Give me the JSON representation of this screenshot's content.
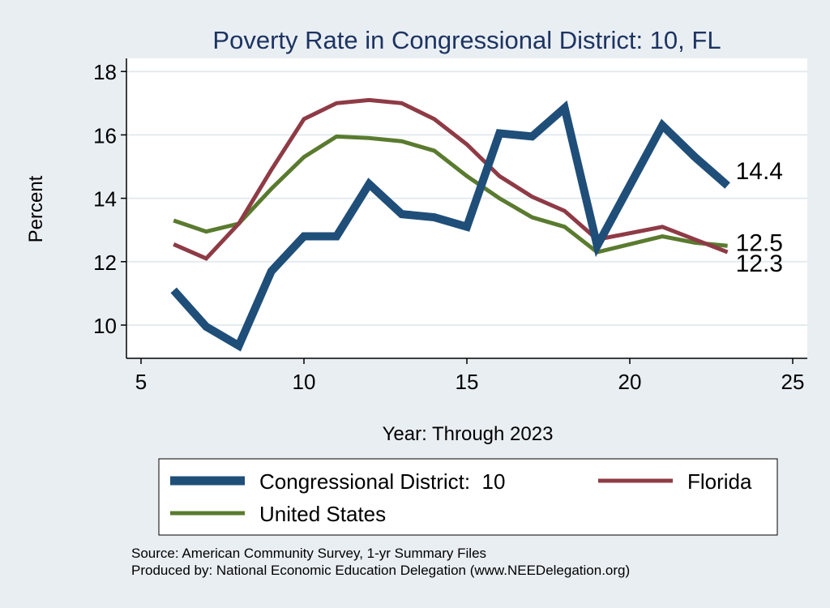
{
  "chart_data": {
    "type": "line",
    "title": "Poverty Rate in Congressional District:  10, FL",
    "xlabel": "Year: Through 2023",
    "ylabel": "Percent",
    "xlim": [
      5,
      25
    ],
    "ylim": [
      9,
      18.3
    ],
    "x_ticks": [
      5,
      10,
      15,
      20,
      25
    ],
    "y_ticks": [
      10,
      12,
      14,
      16,
      18
    ],
    "grid": true,
    "legend_position": "bottom",
    "series": [
      {
        "name": "Congressional District:  10",
        "color": "#1f4e79",
        "x": [
          6,
          7,
          8,
          9,
          10,
          11,
          12,
          13,
          14,
          15,
          16,
          17,
          18,
          19,
          21,
          22,
          23
        ],
        "values": [
          11.1,
          9.95,
          9.35,
          11.7,
          12.8,
          12.8,
          14.45,
          13.5,
          13.4,
          13.1,
          16.05,
          15.95,
          16.85,
          12.5,
          16.3,
          15.3,
          14.4
        ],
        "end_label": "14.4"
      },
      {
        "name": "Florida",
        "color": "#8e3b46",
        "x": [
          6,
          7,
          8,
          9,
          10,
          11,
          12,
          13,
          14,
          15,
          16,
          17,
          18,
          19,
          21,
          22,
          23
        ],
        "values": [
          12.55,
          12.1,
          13.2,
          14.9,
          16.5,
          17.0,
          17.1,
          17.0,
          16.5,
          15.7,
          14.7,
          14.05,
          13.6,
          12.7,
          13.1,
          12.7,
          12.3
        ],
        "end_label": "12.3"
      },
      {
        "name": "United States",
        "color": "#5a7b2f",
        "x": [
          6,
          7,
          8,
          9,
          10,
          11,
          12,
          13,
          14,
          15,
          16,
          17,
          18,
          19,
          21,
          22,
          23
        ],
        "values": [
          13.3,
          12.95,
          13.2,
          14.3,
          15.3,
          15.95,
          15.9,
          15.8,
          15.5,
          14.7,
          14.0,
          13.4,
          13.1,
          12.3,
          12.8,
          12.6,
          12.5
        ],
        "end_label": "12.5"
      }
    ]
  },
  "footer": {
    "source": "Source: American Community Survey, 1-yr Summary Files",
    "produced": "Produced by: National Economic Education Delegation (www.NEEDelegation.org)"
  }
}
